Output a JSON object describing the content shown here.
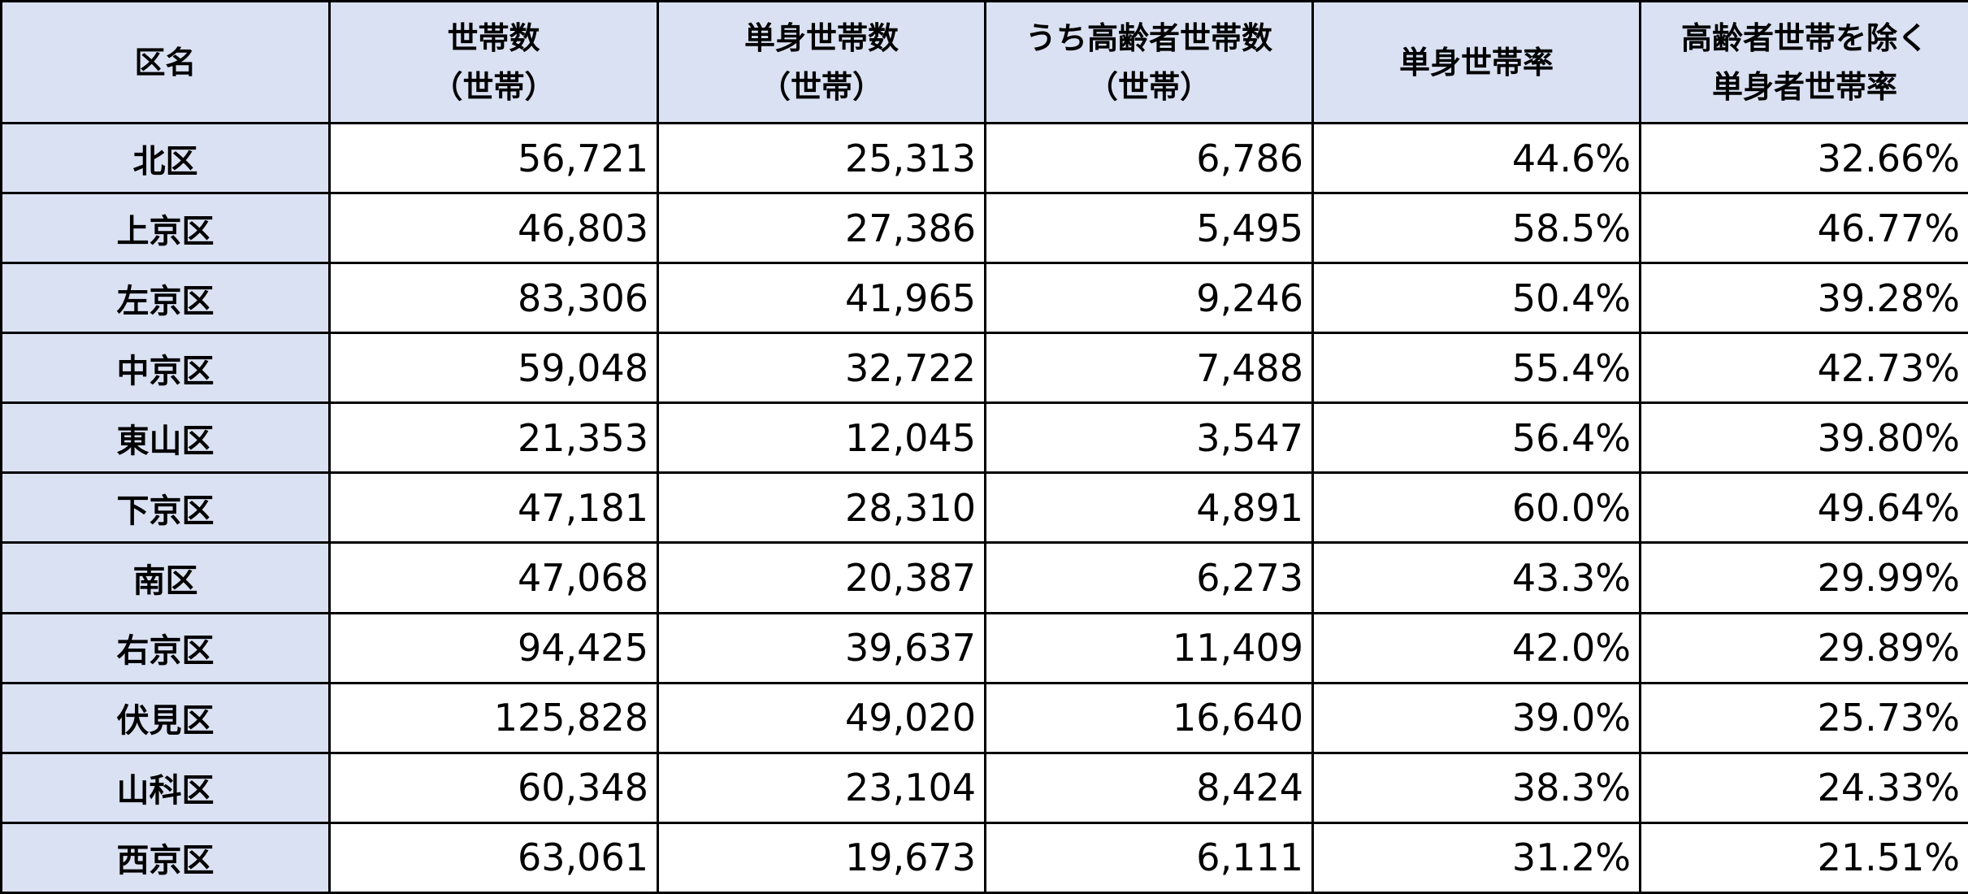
{
  "table": {
    "headers": [
      {
        "lines": [
          "区名"
        ]
      },
      {
        "lines": [
          "世帯数",
          "（世帯）"
        ]
      },
      {
        "lines": [
          "単身世帯数",
          "（世帯）"
        ]
      },
      {
        "lines": [
          "うち高齢者世帯数",
          "（世帯）"
        ]
      },
      {
        "lines": [
          "単身世帯率"
        ]
      },
      {
        "lines": [
          "高齢者世帯を除く",
          "単身者世帯率"
        ]
      }
    ],
    "rows": [
      {
        "ward": "北区",
        "households": "56,721",
        "single_households": "25,313",
        "elderly_households": "6,786",
        "single_rate": "44.6%",
        "single_rate_excl_elderly": "32.66%"
      },
      {
        "ward": "上京区",
        "households": "46,803",
        "single_households": "27,386",
        "elderly_households": "5,495",
        "single_rate": "58.5%",
        "single_rate_excl_elderly": "46.77%"
      },
      {
        "ward": "左京区",
        "households": "83,306",
        "single_households": "41,965",
        "elderly_households": "9,246",
        "single_rate": "50.4%",
        "single_rate_excl_elderly": "39.28%"
      },
      {
        "ward": "中京区",
        "households": "59,048",
        "single_households": "32,722",
        "elderly_households": "7,488",
        "single_rate": "55.4%",
        "single_rate_excl_elderly": "42.73%"
      },
      {
        "ward": "東山区",
        "households": "21,353",
        "single_households": "12,045",
        "elderly_households": "3,547",
        "single_rate": "56.4%",
        "single_rate_excl_elderly": "39.80%"
      },
      {
        "ward": "下京区",
        "households": "47,181",
        "single_households": "28,310",
        "elderly_households": "4,891",
        "single_rate": "60.0%",
        "single_rate_excl_elderly": "49.64%"
      },
      {
        "ward": "南区",
        "households": "47,068",
        "single_households": "20,387",
        "elderly_households": "6,273",
        "single_rate": "43.3%",
        "single_rate_excl_elderly": "29.99%"
      },
      {
        "ward": "右京区",
        "households": "94,425",
        "single_households": "39,637",
        "elderly_households": "11,409",
        "single_rate": "42.0%",
        "single_rate_excl_elderly": "29.89%"
      },
      {
        "ward": "伏見区",
        "households": "125,828",
        "single_households": "49,020",
        "elderly_households": "16,640",
        "single_rate": "39.0%",
        "single_rate_excl_elderly": "25.73%"
      },
      {
        "ward": "山科区",
        "households": "60,348",
        "single_households": "23,104",
        "elderly_households": "8,424",
        "single_rate": "38.3%",
        "single_rate_excl_elderly": "24.33%"
      },
      {
        "ward": "西京区",
        "households": "63,061",
        "single_households": "19,673",
        "elderly_households": "6,111",
        "single_rate": "31.2%",
        "single_rate_excl_elderly": "21.51%"
      }
    ]
  },
  "colors": {
    "header_background": "#dae1f2",
    "border": "#000000",
    "cell_background": "#ffffff"
  }
}
